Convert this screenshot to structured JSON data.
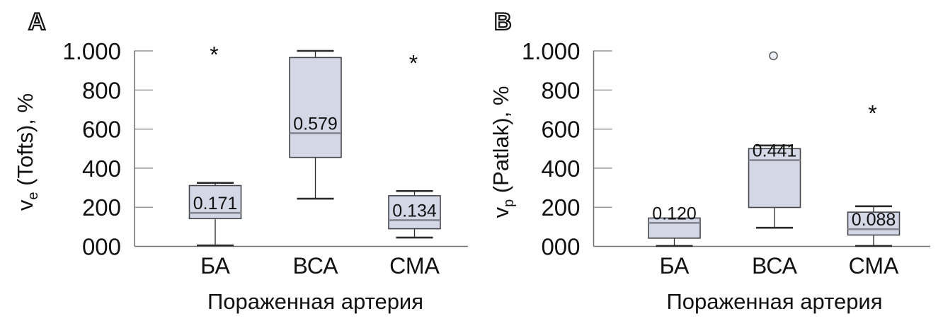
{
  "figure": {
    "background": "#ffffff"
  },
  "style": {
    "box_fill": "#d4d7e6",
    "box_border": "#45454c",
    "median_color": "#85858f",
    "whisker_color": "#2b2b2b",
    "axis_color": "#6f6f6f",
    "tick_color": "#7a7a7a",
    "text_color": "#111111",
    "outlier_circle_stroke": "#5a5a5a",
    "outlier_circle_fill": "#eef0f8"
  },
  "chart_data": [
    {
      "type": "box",
      "panel_label": "A",
      "ylabel_prefix": "v",
      "ylabel_sub": "e",
      "ylabel_suffix": " (Tofts), %",
      "ylabel_full": "ve (Tofts), %",
      "xlabel": "Пораженная артерия",
      "categories": [
        "БА",
        "ВСА",
        "СМА"
      ],
      "ylim": [
        0,
        1
      ],
      "ytick_values": [
        0,
        0.2,
        0.4,
        0.6,
        0.8,
        1
      ],
      "ytick_labels": [
        "000",
        "200",
        "400",
        "600",
        "800",
        "1.000"
      ],
      "grid": false,
      "boxes": [
        {
          "category": "БА",
          "median": 0.171,
          "median_label": "0.171",
          "q1": 0.142,
          "q3": 0.311,
          "whisker_low": 0.005,
          "whisker_high": 0.325,
          "outliers": [
            {
              "symbol": "asterisk",
              "value": 0.995
            }
          ]
        },
        {
          "category": "ВСА",
          "median": 0.579,
          "median_label": "0.579",
          "q1": 0.455,
          "q3": 0.966,
          "whisker_low": 0.244,
          "whisker_high": 1.0,
          "outliers": []
        },
        {
          "category": "СМА",
          "median": 0.134,
          "median_label": "0.134",
          "q1": 0.09,
          "q3": 0.259,
          "whisker_low": 0.045,
          "whisker_high": 0.283,
          "outliers": [
            {
              "symbol": "asterisk",
              "value": 0.952
            }
          ]
        }
      ]
    },
    {
      "type": "box",
      "panel_label": "B",
      "ylabel_prefix": "v",
      "ylabel_sub": "p",
      "ylabel_suffix": " (Patlak), %",
      "ylabel_full": "vp (Patlak), %",
      "xlabel": "Пораженная артерия",
      "categories": [
        "БА",
        "ВСА",
        "СМА"
      ],
      "ylim": [
        0,
        1
      ],
      "ytick_values": [
        0,
        0.2,
        0.4,
        0.6,
        0.8,
        1
      ],
      "ytick_labels": [
        "000",
        "200",
        "400",
        "600",
        "800",
        "1.000"
      ],
      "grid": false,
      "boxes": [
        {
          "category": "БА",
          "median": 0.12,
          "median_label": "0.120",
          "q1": 0.042,
          "q3": 0.145,
          "whisker_low": 0.002,
          "whisker_high": 0.145,
          "outliers": []
        },
        {
          "category": "ВСА",
          "median": 0.441,
          "median_label": "0.441",
          "q1": 0.199,
          "q3": 0.5,
          "whisker_low": 0.095,
          "whisker_high": 0.516,
          "outliers": [
            {
              "symbol": "circle",
              "value": 0.975
            }
          ]
        },
        {
          "category": "СМА",
          "median": 0.088,
          "median_label": "0.088",
          "q1": 0.058,
          "q3": 0.175,
          "whisker_low": 0.002,
          "whisker_high": 0.205,
          "outliers": [
            {
              "symbol": "asterisk",
              "value": 0.695
            }
          ]
        }
      ]
    }
  ]
}
